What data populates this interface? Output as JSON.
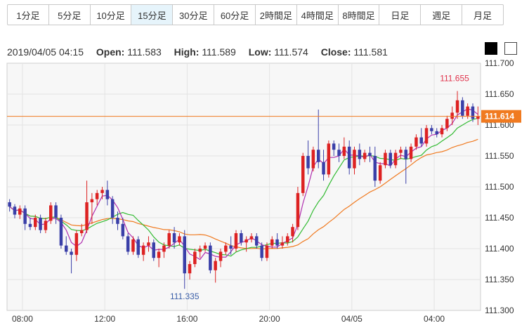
{
  "timeframes": {
    "items": [
      {
        "label": "1分足",
        "active": false
      },
      {
        "label": "5分足",
        "active": false
      },
      {
        "label": "10分足",
        "active": false
      },
      {
        "label": "15分足",
        "active": true
      },
      {
        "label": "30分足",
        "active": false
      },
      {
        "label": "60分足",
        "active": false
      },
      {
        "label": "2時間足",
        "active": false
      },
      {
        "label": "4時間足",
        "active": false
      },
      {
        "label": "8時間足",
        "active": false
      },
      {
        "label": "日足",
        "active": false
      },
      {
        "label": "週足",
        "active": false
      },
      {
        "label": "月足",
        "active": false
      }
    ]
  },
  "ohlc": {
    "datetime": "2019/04/05 04:15",
    "open_label": "Open:",
    "open_value": "111.583",
    "high_label": "High:",
    "high_value": "111.589",
    "low_label": "Low:",
    "low_value": "111.574",
    "close_label": "Close:",
    "close_value": "111.581"
  },
  "theme_toggle": {
    "dark": "#000000",
    "light": "#ffffff"
  },
  "chart_data": {
    "type": "candlestick",
    "ylim": [
      111.3,
      111.7
    ],
    "y_ticks": [
      "111.700",
      "111.650",
      "111.600",
      "111.550",
      "111.500",
      "111.450",
      "111.400",
      "111.350",
      "111.300"
    ],
    "x_ticks": [
      {
        "index": 2.5,
        "label": "08:00"
      },
      {
        "index": 18.5,
        "label": "12:00"
      },
      {
        "index": 34.5,
        "label": "16:00"
      },
      {
        "index": 50.5,
        "label": "20:00"
      },
      {
        "index": 66.5,
        "label": "04/05"
      },
      {
        "index": 82.5,
        "label": "04:00"
      }
    ],
    "bar_count": 92,
    "current_price": {
      "value": 111.614,
      "label": "111.614"
    },
    "max_annotation": {
      "index": 87,
      "value": 111.655,
      "label": "111.655"
    },
    "min_annotation": {
      "index": 34,
      "value": 111.335,
      "label": "111.335"
    },
    "colors": {
      "up": "#dd2222",
      "down": "#3a3fa8",
      "ma_short": "#b030b0",
      "ma_mid": "#33bb33",
      "ma_long": "#f07a20",
      "price_line": "#f07a20",
      "max_label": "#e0334c",
      "min_label": "#3a5ea8"
    },
    "candles": [
      [
        111.475,
        111.48,
        111.46,
        111.468
      ],
      [
        111.468,
        111.472,
        111.449,
        111.455
      ],
      [
        111.455,
        111.47,
        111.448,
        111.465
      ],
      [
        111.465,
        111.47,
        111.43,
        111.44
      ],
      [
        111.44,
        111.45,
        111.43,
        111.435
      ],
      [
        111.435,
        111.455,
        111.43,
        111.45
      ],
      [
        111.45,
        111.455,
        111.425,
        111.43
      ],
      [
        111.43,
        111.45,
        111.425,
        111.445
      ],
      [
        111.445,
        111.475,
        111.44,
        111.47
      ],
      [
        111.47,
        111.475,
        111.44,
        111.45
      ],
      [
        111.45,
        111.455,
        111.4,
        111.405
      ],
      [
        111.405,
        111.42,
        111.39,
        111.395
      ],
      [
        111.395,
        111.4,
        111.36,
        111.39
      ],
      [
        111.39,
        111.43,
        111.38,
        111.425
      ],
      [
        111.425,
        111.44,
        111.42,
        111.43
      ],
      [
        111.43,
        111.51,
        111.425,
        111.475
      ],
      [
        111.475,
        111.49,
        111.44,
        111.48
      ],
      [
        111.48,
        111.495,
        111.47,
        111.49
      ],
      [
        111.49,
        111.5,
        111.48,
        111.495
      ],
      [
        111.495,
        111.51,
        111.47,
        111.48
      ],
      [
        111.48,
        111.485,
        111.44,
        111.45
      ],
      [
        111.45,
        111.46,
        111.43,
        111.44
      ],
      [
        111.44,
        111.45,
        111.415,
        111.42
      ],
      [
        111.42,
        111.425,
        111.39,
        111.395
      ],
      [
        111.395,
        111.42,
        111.39,
        111.415
      ],
      [
        111.415,
        111.42,
        111.385,
        111.39
      ],
      [
        111.39,
        111.41,
        111.38,
        111.405
      ],
      [
        111.405,
        111.42,
        111.395,
        111.41
      ],
      [
        111.41,
        111.415,
        111.38,
        111.385
      ],
      [
        111.385,
        111.4,
        111.37,
        111.395
      ],
      [
        111.395,
        111.41,
        111.385,
        111.405
      ],
      [
        111.405,
        111.43,
        111.4,
        111.425
      ],
      [
        111.425,
        111.435,
        111.4,
        111.41
      ],
      [
        111.41,
        111.425,
        111.405,
        111.42
      ],
      [
        111.42,
        111.43,
        111.335,
        111.36
      ],
      [
        111.36,
        111.38,
        111.35,
        111.375
      ],
      [
        111.375,
        111.4,
        111.37,
        111.395
      ],
      [
        111.395,
        111.405,
        111.385,
        111.4
      ],
      [
        111.4,
        111.41,
        111.395,
        111.405
      ],
      [
        111.405,
        111.41,
        111.36,
        111.365
      ],
      [
        111.365,
        111.385,
        111.345,
        111.38
      ],
      [
        111.38,
        111.4,
        111.37,
        111.395
      ],
      [
        111.395,
        111.41,
        111.39,
        111.405
      ],
      [
        111.405,
        111.42,
        111.39,
        111.4
      ],
      [
        111.4,
        111.43,
        111.395,
        111.425
      ],
      [
        111.425,
        111.43,
        111.405,
        111.41
      ],
      [
        111.41,
        111.42,
        111.395,
        111.415
      ],
      [
        111.415,
        111.425,
        111.41,
        111.42
      ],
      [
        111.42,
        111.425,
        111.4,
        111.405
      ],
      [
        111.405,
        111.41,
        111.38,
        111.385
      ],
      [
        111.385,
        111.41,
        111.38,
        111.405
      ],
      [
        111.405,
        111.42,
        111.4,
        111.415
      ],
      [
        111.415,
        111.425,
        111.4,
        111.405
      ],
      [
        111.405,
        111.42,
        111.4,
        111.41
      ],
      [
        111.41,
        111.425,
        111.405,
        111.42
      ],
      [
        111.42,
        111.44,
        111.41,
        111.435
      ],
      [
        111.435,
        111.5,
        111.43,
        111.49
      ],
      [
        111.49,
        111.555,
        111.485,
        111.55
      ],
      [
        111.55,
        111.575,
        111.52,
        111.53
      ],
      [
        111.53,
        111.565,
        111.525,
        111.56
      ],
      [
        111.56,
        111.625,
        111.53,
        111.54
      ],
      [
        111.54,
        111.56,
        111.51,
        111.52
      ],
      [
        111.52,
        111.575,
        111.515,
        111.57
      ],
      [
        111.57,
        111.575,
        111.55,
        111.56
      ],
      [
        111.56,
        111.57,
        111.54,
        111.55
      ],
      [
        111.55,
        111.58,
        111.545,
        111.565
      ],
      [
        111.565,
        111.575,
        111.52,
        111.53
      ],
      [
        111.53,
        111.565,
        111.52,
        111.56
      ],
      [
        111.56,
        111.57,
        111.535,
        111.545
      ],
      [
        111.545,
        111.56,
        111.54,
        111.555
      ],
      [
        111.555,
        111.565,
        111.54,
        111.55
      ],
      [
        111.55,
        111.565,
        111.5,
        111.51
      ],
      [
        111.51,
        111.54,
        111.505,
        111.535
      ],
      [
        111.535,
        111.56,
        111.53,
        111.555
      ],
      [
        111.555,
        111.56,
        111.53,
        111.535
      ],
      [
        111.535,
        111.56,
        111.53,
        111.555
      ],
      [
        111.555,
        111.565,
        111.545,
        111.56
      ],
      [
        111.56,
        111.565,
        111.505,
        111.545
      ],
      [
        111.545,
        111.57,
        111.54,
        111.565
      ],
      [
        111.565,
        111.585,
        111.56,
        111.58
      ],
      [
        111.58,
        111.595,
        111.565,
        111.57
      ],
      [
        111.57,
        111.6,
        111.565,
        111.595
      ],
      [
        111.595,
        111.6,
        111.585,
        111.59
      ],
      [
        111.59,
        111.595,
        111.58,
        111.585
      ],
      [
        111.585,
        111.6,
        111.58,
        111.595
      ],
      [
        111.595,
        111.615,
        111.59,
        111.61
      ],
      [
        111.61,
        111.63,
        111.6,
        111.62
      ],
      [
        111.62,
        111.655,
        111.61,
        111.64
      ],
      [
        111.64,
        111.645,
        111.61,
        111.615
      ],
      [
        111.615,
        111.635,
        111.61,
        111.63
      ],
      [
        111.63,
        111.635,
        111.605,
        111.61
      ],
      [
        111.61,
        111.63,
        111.6,
        111.614
      ]
    ]
  }
}
